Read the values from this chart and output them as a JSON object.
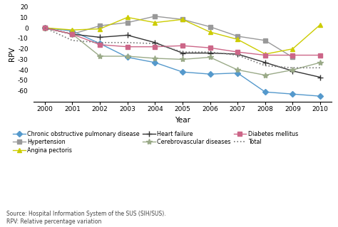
{
  "years": [
    2000,
    2001,
    2002,
    2003,
    2004,
    2005,
    2006,
    2007,
    2008,
    2009,
    2010
  ],
  "series": {
    "Chronic obstructive pulmonary disease": {
      "values": [
        0,
        -3,
        -15,
        -28,
        -33,
        -42,
        -44,
        -43,
        -61,
        -63,
        -65
      ],
      "color": "#5599cc",
      "marker": "D",
      "markersize": 4,
      "linestyle": "-",
      "linewidth": 1.0
    },
    "Hypertension": {
      "values": [
        0,
        -6,
        2,
        5,
        11,
        8,
        1,
        -8,
        -12,
        -28,
        null
      ],
      "color": "#999999",
      "marker": "s",
      "markersize": 4,
      "linestyle": "-",
      "linewidth": 1.0
    },
    "Angina pectoris": {
      "values": [
        0,
        -2,
        -1,
        10,
        5,
        8,
        -4,
        -11,
        -25,
        -20,
        3
      ],
      "color": "#cccc00",
      "marker": "^",
      "markersize": 5,
      "linestyle": "-",
      "linewidth": 1.0
    },
    "Heart failure": {
      "values": [
        0,
        -6,
        -9,
        -7,
        -14,
        -24,
        -24,
        -25,
        -33,
        -41,
        -47
      ],
      "color": "#333333",
      "marker": "+",
      "markersize": 6,
      "linestyle": "-",
      "linewidth": 1.0
    },
    "Cerebrovascular diseases": {
      "values": [
        0,
        -6,
        -27,
        -27,
        -29,
        -30,
        -28,
        -40,
        -45,
        -40,
        -33
      ],
      "color": "#9aaa88",
      "marker": "*",
      "markersize": 6,
      "linestyle": "-",
      "linewidth": 1.0
    },
    "Diabetes mellitus": {
      "values": [
        0,
        -6,
        -16,
        -18,
        -18,
        -17,
        -19,
        -23,
        -26,
        -26,
        -26
      ],
      "color": "#cc6688",
      "marker": "s",
      "markersize": 4,
      "linestyle": "-",
      "linewidth": 1.0
    },
    "Total": {
      "values": [
        0,
        -12,
        -14,
        -14,
        -15,
        -23,
        -23,
        -26,
        -36,
        -38,
        -38
      ],
      "color": "#777777",
      "marker": null,
      "markersize": 0,
      "linestyle": ":",
      "linewidth": 1.2
    }
  },
  "xlabel": "Year",
  "ylabel": "RPV",
  "ylim": [
    -70,
    20
  ],
  "yticks": [
    -60,
    -50,
    -40,
    -30,
    -20,
    -10,
    0,
    10,
    20
  ],
  "source_text": "Source: Hospital Information System of the SUS (SIH/SUS).\nRPV: Relative percentage variation",
  "legend_col1": [
    "Chronic obstructive pulmonary disease",
    "Heart failure",
    "Total"
  ],
  "legend_col2": [
    "Hypertension",
    "Cerebrovascular diseases"
  ],
  "legend_col3": [
    "Angina pectoris",
    "Diabetes mellitus"
  ],
  "background_color": "#ffffff"
}
